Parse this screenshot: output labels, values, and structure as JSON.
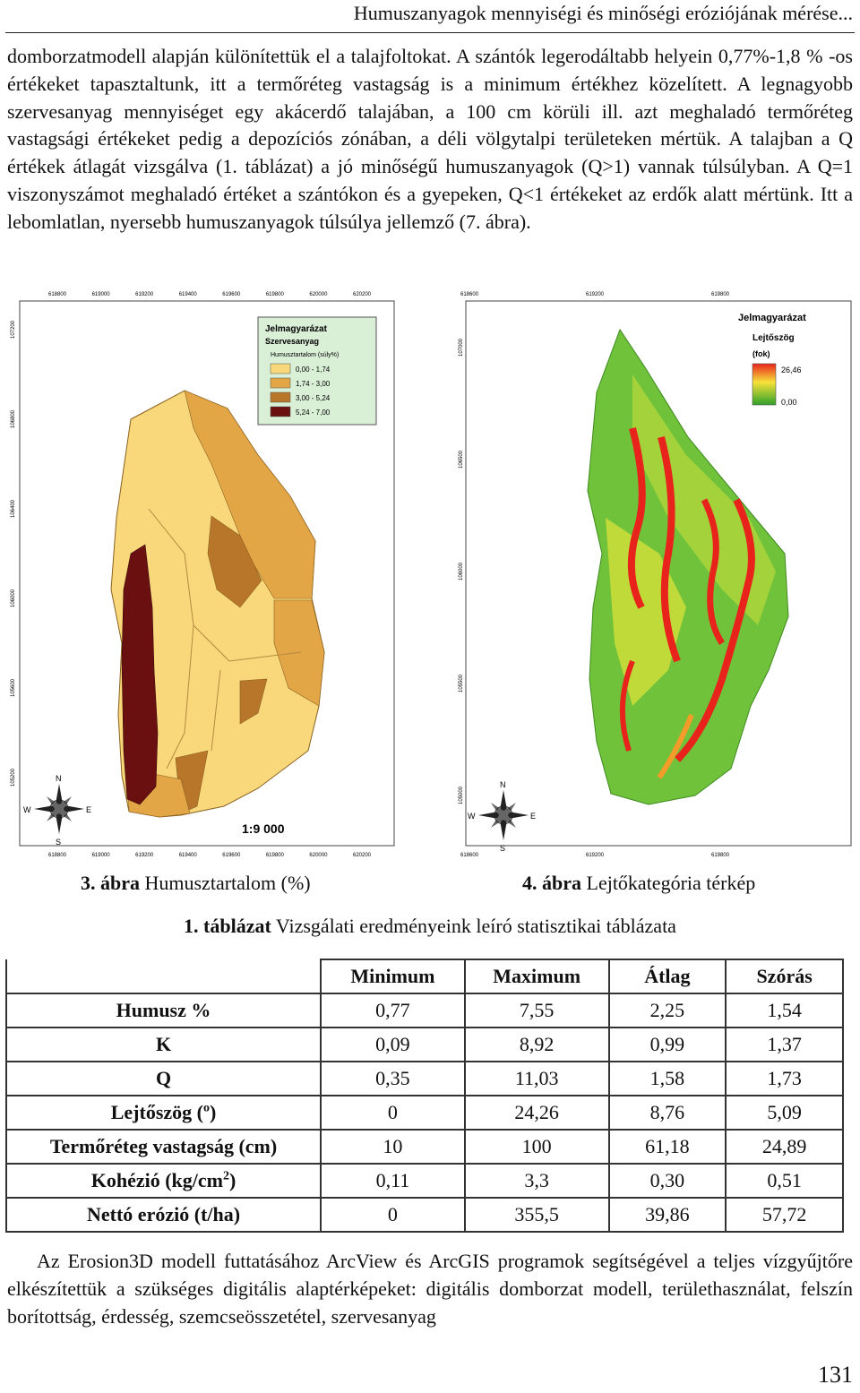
{
  "header": {
    "title": "Humuszanyagok mennyiségi és minőségi eróziójának mérése..."
  },
  "paragraph_top": "domborzatmodell alapján különítettük el a talajfoltokat. A szántók legerodáltabb helyein 0,77%-1,8 % -os értékeket tapasztaltunk, itt a termőréteg vastagság is a minimum értékhez közelített. A legnagyobb szervesanyag mennyiséget egy akácerdő talajában, a 100 cm körüli ill. azt meghaladó termőréteg vastagsági értékeket pedig a depozíciós zónában, a déli völgytalpi területeken mértük. A talajban a Q értékek átlagát vizsgálva (1. táblázat) a jó minőségű humuszanyagok (Q>1) vannak túlsúlyban. A Q=1 viszonyszámot meghaladó értéket a szántókon és a gyepeken, Q<1 értékeket az erdők alatt mértünk. Itt a lebomlatlan, nyersebb humuszanyagok túlsúlya jellemző (7. ábra).",
  "map_left": {
    "legend_title": "Jelmagyarázat",
    "legend_subtitle": "Szervesanyag",
    "legend_field": "Humusztartalom (súly%)",
    "legend_items": [
      {
        "label": "0,00 - 1,74",
        "color": "#f8d87a"
      },
      {
        "label": "1,74 - 3,00",
        "color": "#e3a646"
      },
      {
        "label": "3,00 - 5,24",
        "color": "#b8762a"
      },
      {
        "label": "5,24 - 7,00",
        "color": "#6a1010"
      }
    ],
    "scale": "1:9 000",
    "x_ticks_top": [
      "618800",
      "619000",
      "619200",
      "619400",
      "619600",
      "619800",
      "620000",
      "620200"
    ],
    "x_ticks_bottom": [
      "618800",
      "619000",
      "619200",
      "619400",
      "619600",
      "619800",
      "620000",
      "620200"
    ],
    "y_ticks": [
      "107200",
      "106800",
      "106400",
      "106000",
      "105600",
      "105200"
    ],
    "compass": {
      "n": "N",
      "s": "S",
      "e": "E",
      "w": "W"
    }
  },
  "map_right": {
    "legend_title": "Jelmagyarázat",
    "legend_subtitle": "Lejtőszög",
    "legend_unit": "(fok)",
    "legend_max": "26,46",
    "legend_min": "0,00",
    "x_ticks_top": [
      "618600",
      "619200",
      "619800"
    ],
    "x_ticks_bottom": [
      "618600",
      "619200",
      "619800"
    ],
    "y_ticks": [
      "107000",
      "106500",
      "106000",
      "105500",
      "105000"
    ],
    "compass": {
      "n": "N",
      "s": "S",
      "e": "E",
      "w": "W"
    }
  },
  "captions": {
    "fig3_num": "3. ábra",
    "fig3_text": " Humusztartalom (%)",
    "fig4_num": "4. ábra",
    "fig4_text": " Lejtőkategória térkép",
    "table_num": "1. táblázat",
    "table_text": " Vizsgálati eredményeink leíró statisztikai táblázata"
  },
  "table": {
    "columns": [
      "",
      "Minimum",
      "Maximum",
      "Átlag",
      "Szórás"
    ],
    "rows": [
      {
        "label": "Humusz %",
        "sup": "",
        "suffix": "",
        "values": [
          "0,77",
          "7,55",
          "2,25",
          "1,54"
        ]
      },
      {
        "label": "K",
        "sup": "",
        "suffix": "",
        "values": [
          "0,09",
          "8,92",
          "0,99",
          "1,37"
        ]
      },
      {
        "label": "Q",
        "sup": "",
        "suffix": "",
        "values": [
          "0,35",
          "11,03",
          "1,58",
          "1,73"
        ]
      },
      {
        "label": "Lejtőszög (",
        "sup": "o",
        "suffix": ")",
        "values": [
          "0",
          "24,26",
          "8,76",
          "5,09"
        ]
      },
      {
        "label": "Termőréteg vastagság (cm)",
        "sup": "",
        "suffix": "",
        "values": [
          "10",
          "100",
          "61,18",
          "24,89"
        ]
      },
      {
        "label": "Kohézió (kg/cm",
        "sup": "2",
        "suffix": ")",
        "values": [
          "0,11",
          "3,3",
          "0,30",
          "0,51"
        ]
      },
      {
        "label": "Nettó erózió (t/ha)",
        "sup": "",
        "suffix": "",
        "values": [
          "0",
          "355,5",
          "39,86",
          "57,72"
        ]
      }
    ]
  },
  "paragraph_bottom": "Az Erosion3D modell futtatásához ArcView és ArcGIS programok segítségével a teljes vízgyűjtőre elkészítettük a szükséges digitális alaptérképeket: digitális domborzat modell, területhasználat, felszín borítottság, érdesség, szemcseösszetétel, szervesanyag",
  "page_number": "131"
}
